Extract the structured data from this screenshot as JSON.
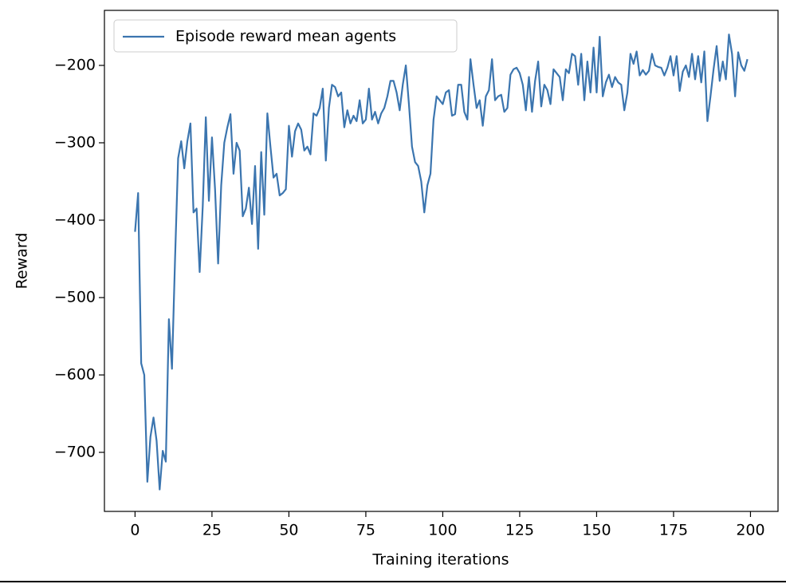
{
  "chart_data": {
    "type": "line",
    "x_label": "Training iterations",
    "y_label": "Reward",
    "x": [
      0,
      1,
      2,
      3,
      4,
      5,
      6,
      7,
      8,
      9,
      10,
      11,
      12,
      13,
      14,
      15,
      16,
      17,
      18,
      19,
      20,
      21,
      22,
      23,
      24,
      25,
      26,
      27,
      28,
      29,
      30,
      31,
      32,
      33,
      34,
      35,
      36,
      37,
      38,
      39,
      40,
      41,
      42,
      43,
      44,
      45,
      46,
      47,
      48,
      49,
      50,
      51,
      52,
      53,
      54,
      55,
      56,
      57,
      58,
      59,
      60,
      61,
      62,
      63,
      64,
      65,
      66,
      67,
      68,
      69,
      70,
      71,
      72,
      73,
      74,
      75,
      76,
      77,
      78,
      79,
      80,
      81,
      82,
      83,
      84,
      85,
      86,
      87,
      88,
      89,
      90,
      91,
      92,
      93,
      94,
      95,
      96,
      97,
      98,
      99,
      100,
      101,
      102,
      103,
      104,
      105,
      106,
      107,
      108,
      109,
      110,
      111,
      112,
      113,
      114,
      115,
      116,
      117,
      118,
      119,
      120,
      121,
      122,
      123,
      124,
      125,
      126,
      127,
      128,
      129,
      130,
      131,
      132,
      133,
      134,
      135,
      136,
      137,
      138,
      139,
      140,
      141,
      142,
      143,
      144,
      145,
      146,
      147,
      148,
      149,
      150,
      151,
      152,
      153,
      154,
      155,
      156,
      157,
      158,
      159,
      160,
      161,
      162,
      163,
      164,
      165,
      166,
      167,
      168,
      169,
      170,
      171,
      172,
      173,
      174,
      175,
      176,
      177,
      178,
      179,
      180,
      181,
      182,
      183,
      184,
      185,
      186,
      187,
      188,
      189,
      190,
      191,
      192,
      193,
      194,
      195,
      196,
      197,
      198,
      199
    ],
    "series": [
      {
        "name": "Episode reward mean agents",
        "color": "#3b75af",
        "values": [
          -415,
          -365,
          -585,
          -600,
          -738,
          -680,
          -655,
          -685,
          -748,
          -698,
          -712,
          -528,
          -592,
          -450,
          -320,
          -298,
          -333,
          -298,
          -275,
          -390,
          -385,
          -467,
          -382,
          -267,
          -375,
          -293,
          -360,
          -456,
          -355,
          -300,
          -280,
          -263,
          -340,
          -300,
          -310,
          -395,
          -385,
          -358,
          -405,
          -330,
          -437,
          -312,
          -393,
          -262,
          -305,
          -345,
          -340,
          -368,
          -365,
          -360,
          -278,
          -318,
          -285,
          -275,
          -283,
          -310,
          -305,
          -315,
          -262,
          -265,
          -255,
          -230,
          -323,
          -255,
          -225,
          -228,
          -240,
          -235,
          -280,
          -258,
          -275,
          -265,
          -272,
          -245,
          -275,
          -270,
          -230,
          -270,
          -260,
          -275,
          -262,
          -255,
          -240,
          -220,
          -220,
          -235,
          -258,
          -225,
          -200,
          -250,
          -305,
          -325,
          -330,
          -350,
          -390,
          -355,
          -340,
          -270,
          -240,
          -245,
          -250,
          -235,
          -232,
          -265,
          -263,
          -225,
          -225,
          -260,
          -270,
          -192,
          -225,
          -255,
          -245,
          -278,
          -240,
          -232,
          -192,
          -245,
          -240,
          -238,
          -260,
          -255,
          -212,
          -205,
          -203,
          -210,
          -225,
          -258,
          -215,
          -260,
          -220,
          -195,
          -253,
          -225,
          -232,
          -250,
          -205,
          -210,
          -215,
          -245,
          -205,
          -210,
          -185,
          -188,
          -225,
          -185,
          -245,
          -195,
          -235,
          -177,
          -235,
          -163,
          -240,
          -222,
          -212,
          -228,
          -215,
          -222,
          -225,
          -258,
          -235,
          -185,
          -198,
          -182,
          -213,
          -206,
          -212,
          -207,
          -185,
          -200,
          -202,
          -203,
          -213,
          -203,
          -188,
          -213,
          -188,
          -233,
          -208,
          -200,
          -215,
          -185,
          -218,
          -188,
          -222,
          -182,
          -272,
          -240,
          -205,
          -175,
          -220,
          -195,
          -218,
          -160,
          -185,
          -240,
          -183,
          -200,
          -207,
          -192
        ]
      }
    ],
    "xlim": [
      -9.95,
      208.95
    ],
    "ylim": [
      -776.3,
      -128.9
    ],
    "xticks": [
      0,
      25,
      50,
      75,
      100,
      125,
      150,
      175,
      200
    ],
    "yticks": [
      {
        "value": -700,
        "label": "−700"
      },
      {
        "value": -600,
        "label": "−600"
      },
      {
        "value": -500,
        "label": "−500"
      },
      {
        "value": -400,
        "label": "−400"
      },
      {
        "value": -300,
        "label": "−300"
      },
      {
        "value": -200,
        "label": "−200"
      }
    ],
    "legend": "upper left",
    "grid": false
  }
}
